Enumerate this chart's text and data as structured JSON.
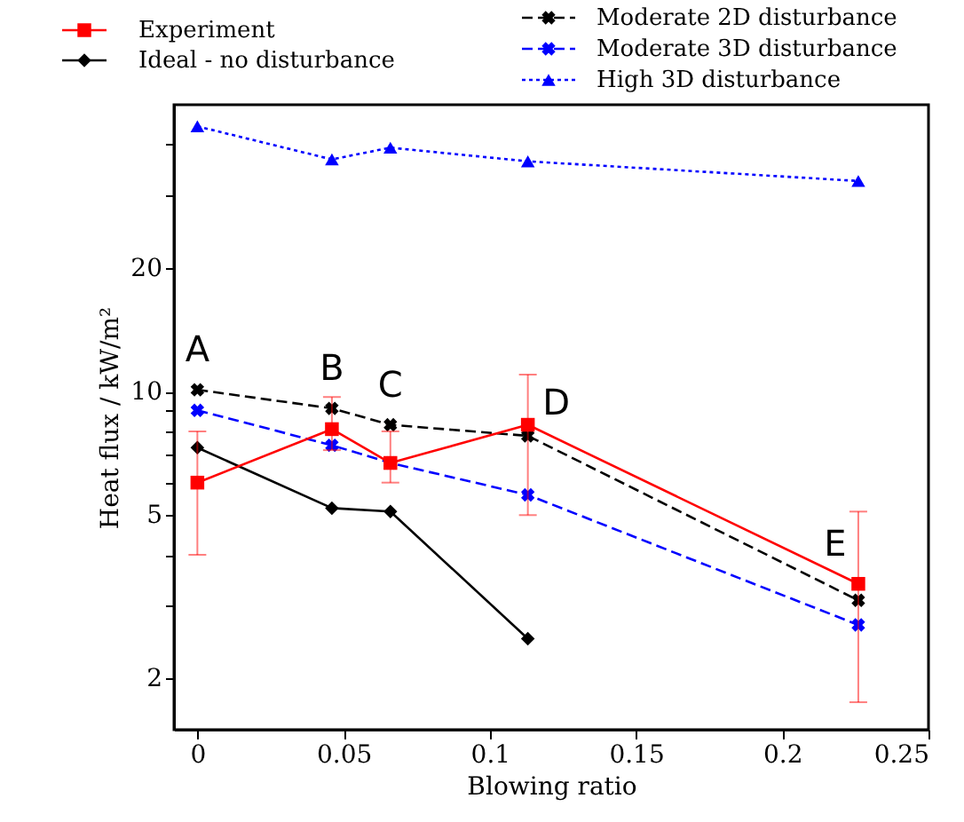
{
  "chart_data": {
    "type": "line",
    "xlabel": "Blowing ratio",
    "ylabel": "Heat flux / kW/m²",
    "x": [
      0,
      0.046,
      0.066,
      0.113,
      0.226
    ],
    "series": [
      {
        "name": "Experiment",
        "color": "#ff0000",
        "marker": "square",
        "line_style": "solid",
        "values": [
          6.0,
          8.1,
          6.7,
          8.3,
          3.4
        ],
        "errors": [
          [
            4.0,
            8.0
          ],
          [
            7.2,
            9.7
          ],
          [
            6.0,
            8.0
          ],
          [
            5.0,
            11.0
          ],
          [
            1.75,
            5.1
          ]
        ]
      },
      {
        "name": "Ideal - no disturbance",
        "color": "#000000",
        "marker": "diamond",
        "line_style": "solid",
        "values": [
          7.3,
          5.2,
          5.1,
          2.5,
          null
        ]
      },
      {
        "name": "Moderate 2D disturbance",
        "color": "#000000",
        "marker": "cross",
        "line_style": "dashed",
        "values": [
          10.1,
          9.1,
          8.3,
          7.8,
          3.1
        ]
      },
      {
        "name": "Moderate 3D disturbance",
        "color": "#0000ff",
        "marker": "cross",
        "line_style": "dashed",
        "values": [
          9.0,
          7.4,
          6.7,
          5.6,
          2.7
        ]
      },
      {
        "name": "High 3D disturbance",
        "color": "#0000ff",
        "marker": "triangle",
        "line_style": "dotted",
        "values": [
          44.3,
          36.8,
          39.3,
          36.4,
          32.6
        ]
      }
    ],
    "xlim": [
      -0.008,
      0.25
    ],
    "xticks": [
      0,
      0.05,
      0.1,
      0.15,
      0.2,
      0.25
    ],
    "ylim": [
      1.5,
      50
    ],
    "log": true,
    "yticks": [
      2,
      {
        "value": 3,
        "label": null
      },
      {
        "value": 4,
        "label": null
      },
      5,
      {
        "value": 6,
        "label": null
      },
      {
        "value": 7,
        "label": null
      },
      {
        "value": 8,
        "label": null
      },
      {
        "value": 9,
        "label": null
      },
      10,
      20,
      {
        "value": 30,
        "label": null
      },
      {
        "value": 40,
        "label": null
      }
    ],
    "annotations": [
      {
        "text": "A",
        "x": 0,
        "y": 10.1
      },
      {
        "text": "B",
        "x": 0.046,
        "y": 9.1
      },
      {
        "text": "C",
        "x": 0.066,
        "y": 8.3
      },
      {
        "text": "D",
        "x": 0.113,
        "y": 8.3
      },
      {
        "text": "E",
        "x": 0.226,
        "y": 3.4
      }
    ],
    "grid": false,
    "legend": "top"
  }
}
